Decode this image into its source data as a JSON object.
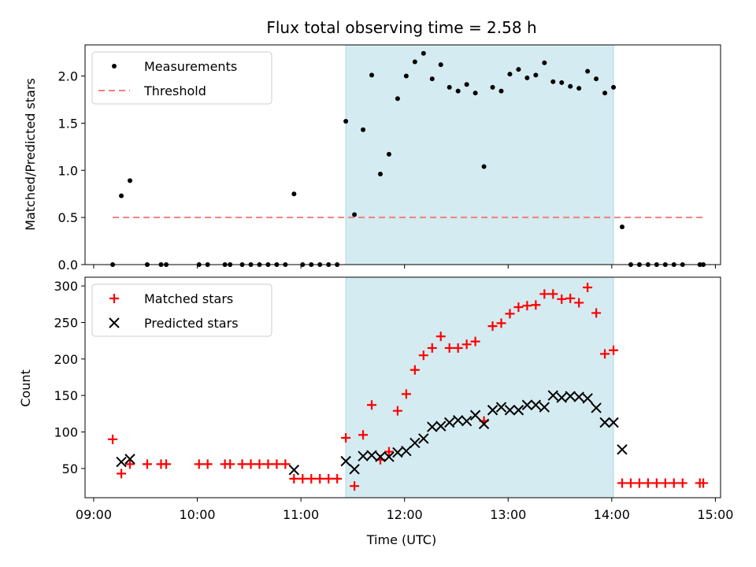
{
  "chart_data": [
    {
      "type": "scatter",
      "title": "Flux total observing time = 2.58 h",
      "xlabel": "",
      "ylabel": "Matched/Predicted stars",
      "ylim": [
        0,
        2.33
      ],
      "yticks": [
        0.0,
        0.5,
        1.0,
        1.5,
        2.0
      ],
      "ytick_labels": [
        "0.0",
        "0.5",
        "1.0",
        "1.5",
        "2.0"
      ],
      "legend_location": "upper-left",
      "highlight_span": {
        "start": "11:26",
        "end": "14:01",
        "color": "#d4ebf1"
      },
      "series": [
        {
          "name": "Measurements",
          "color": "#000000",
          "marker": "dot",
          "points": [
            [
              "09:11",
              0.0
            ],
            [
              "09:16",
              0.73
            ],
            [
              "09:21",
              0.89
            ],
            [
              "09:31",
              0.0
            ],
            [
              "09:39",
              0.0
            ],
            [
              "09:42",
              0.0
            ],
            [
              "10:01",
              0.0
            ],
            [
              "10:06",
              0.0
            ],
            [
              "10:16",
              0.0
            ],
            [
              "10:19",
              0.0
            ],
            [
              "10:26",
              0.0
            ],
            [
              "10:31",
              0.0
            ],
            [
              "10:36",
              0.0
            ],
            [
              "10:41",
              0.0
            ],
            [
              "10:46",
              0.0
            ],
            [
              "10:51",
              0.0
            ],
            [
              "10:56",
              0.75
            ],
            [
              "11:01",
              0.0
            ],
            [
              "11:06",
              0.0
            ],
            [
              "11:11",
              0.0
            ],
            [
              "11:16",
              0.0
            ],
            [
              "11:21",
              0.0
            ],
            [
              "11:26",
              1.52
            ],
            [
              "11:31",
              0.53
            ],
            [
              "11:36",
              1.43
            ],
            [
              "11:41",
              2.01
            ],
            [
              "11:46",
              0.96
            ],
            [
              "11:51",
              1.17
            ],
            [
              "11:56",
              1.76
            ],
            [
              "12:01",
              2.0
            ],
            [
              "12:06",
              2.15
            ],
            [
              "12:11",
              2.24
            ],
            [
              "12:16",
              1.97
            ],
            [
              "12:21",
              2.12
            ],
            [
              "12:26",
              1.88
            ],
            [
              "12:31",
              1.84
            ],
            [
              "12:36",
              1.91
            ],
            [
              "12:41",
              1.82
            ],
            [
              "12:46",
              1.04
            ],
            [
              "12:51",
              1.88
            ],
            [
              "12:56",
              1.84
            ],
            [
              "13:01",
              2.02
            ],
            [
              "13:06",
              2.07
            ],
            [
              "13:11",
              1.98
            ],
            [
              "13:16",
              2.01
            ],
            [
              "13:21",
              2.14
            ],
            [
              "13:26",
              1.94
            ],
            [
              "13:31",
              1.93
            ],
            [
              "13:36",
              1.89
            ],
            [
              "13:41",
              1.87
            ],
            [
              "13:46",
              2.05
            ],
            [
              "13:51",
              1.97
            ],
            [
              "13:56",
              1.82
            ],
            [
              "14:01",
              1.88
            ],
            [
              "14:06",
              0.4
            ],
            [
              "14:11",
              0.0
            ],
            [
              "14:16",
              0.0
            ],
            [
              "14:21",
              0.0
            ],
            [
              "14:26",
              0.0
            ],
            [
              "14:31",
              0.0
            ],
            [
              "14:36",
              0.0
            ],
            [
              "14:41",
              0.0
            ],
            [
              "14:51",
              0.0
            ],
            [
              "14:53",
              0.0
            ]
          ]
        },
        {
          "name": "Threshold",
          "color": "#f08080",
          "marker": "dashed-line",
          "points": [
            [
              "09:11",
              0.5
            ],
            [
              "14:53",
              0.5
            ]
          ]
        }
      ]
    },
    {
      "type": "scatter",
      "title": "",
      "xlabel": "Time (UTC)",
      "ylabel": "Count",
      "ylim": [
        10,
        312
      ],
      "yticks": [
        50,
        100,
        150,
        200,
        250,
        300
      ],
      "ytick_labels": [
        "50",
        "100",
        "150",
        "200",
        "250",
        "300"
      ],
      "xticks": [
        "09:00",
        "10:00",
        "11:00",
        "12:00",
        "13:00",
        "14:00",
        "15:00"
      ],
      "xlim": [
        "08:55",
        "15:03"
      ],
      "legend_location": "upper-left",
      "highlight_span": {
        "start": "11:26",
        "end": "14:01",
        "color": "#d4ebf1"
      },
      "series": [
        {
          "name": "Matched stars",
          "color": "#ff0000",
          "marker": "plus",
          "points": [
            [
              "09:11",
              90
            ],
            [
              "09:16",
              43
            ],
            [
              "09:21",
              56
            ],
            [
              "09:31",
              56
            ],
            [
              "09:39",
              56
            ],
            [
              "09:42",
              56
            ],
            [
              "10:01",
              56
            ],
            [
              "10:06",
              56
            ],
            [
              "10:16",
              56
            ],
            [
              "10:19",
              56
            ],
            [
              "10:26",
              56
            ],
            [
              "10:31",
              56
            ],
            [
              "10:36",
              56
            ],
            [
              "10:41",
              56
            ],
            [
              "10:46",
              56
            ],
            [
              "10:51",
              56
            ],
            [
              "10:56",
              36
            ],
            [
              "11:01",
              36
            ],
            [
              "11:06",
              36
            ],
            [
              "11:11",
              36
            ],
            [
              "11:16",
              36
            ],
            [
              "11:21",
              36
            ],
            [
              "11:26",
              92
            ],
            [
              "11:31",
              26
            ],
            [
              "11:36",
              96
            ],
            [
              "11:41",
              137
            ],
            [
              "11:46",
              62
            ],
            [
              "11:51",
              73
            ],
            [
              "11:56",
              129
            ],
            [
              "12:01",
              152
            ],
            [
              "12:06",
              185
            ],
            [
              "12:11",
              205
            ],
            [
              "12:16",
              215
            ],
            [
              "12:21",
              231
            ],
            [
              "12:26",
              215
            ],
            [
              "12:31",
              215
            ],
            [
              "12:36",
              220
            ],
            [
              "12:41",
              224
            ],
            [
              "12:46",
              115
            ],
            [
              "12:51",
              245
            ],
            [
              "12:56",
              249
            ],
            [
              "13:01",
              262
            ],
            [
              "13:06",
              271
            ],
            [
              "13:11",
              273
            ],
            [
              "13:16",
              274
            ],
            [
              "13:21",
              289
            ],
            [
              "13:26",
              289
            ],
            [
              "13:31",
              282
            ],
            [
              "13:36",
              283
            ],
            [
              "13:41",
              277
            ],
            [
              "13:46",
              298
            ],
            [
              "13:51",
              263
            ],
            [
              "13:56",
              207
            ],
            [
              "14:01",
              212
            ],
            [
              "14:06",
              30
            ],
            [
              "14:11",
              30
            ],
            [
              "14:16",
              30
            ],
            [
              "14:21",
              30
            ],
            [
              "14:26",
              30
            ],
            [
              "14:31",
              30
            ],
            [
              "14:36",
              30
            ],
            [
              "14:41",
              30
            ],
            [
              "14:51",
              30
            ],
            [
              "14:53",
              30
            ]
          ]
        },
        {
          "name": "Predicted stars",
          "color": "#000000",
          "marker": "x",
          "points": [
            [
              "09:16",
              59
            ],
            [
              "09:21",
              63
            ],
            [
              "10:56",
              48
            ],
            [
              "11:26",
              60
            ],
            [
              "11:31",
              49
            ],
            [
              "11:36",
              67
            ],
            [
              "11:41",
              68
            ],
            [
              "11:46",
              66
            ],
            [
              "11:51",
              66
            ],
            [
              "11:56",
              72
            ],
            [
              "12:01",
              74
            ],
            [
              "12:06",
              85
            ],
            [
              "12:11",
              91
            ],
            [
              "12:16",
              107
            ],
            [
              "12:21",
              108
            ],
            [
              "12:26",
              113
            ],
            [
              "12:31",
              116
            ],
            [
              "12:36",
              115
            ],
            [
              "12:41",
              123
            ],
            [
              "12:46",
              111
            ],
            [
              "12:51",
              130
            ],
            [
              "12:56",
              134
            ],
            [
              "13:01",
              130
            ],
            [
              "13:06",
              130
            ],
            [
              "13:11",
              137
            ],
            [
              "13:16",
              137
            ],
            [
              "13:21",
              134
            ],
            [
              "13:26",
              150
            ],
            [
              "13:31",
              147
            ],
            [
              "13:36",
              149
            ],
            [
              "13:41",
              148
            ],
            [
              "13:46",
              146
            ],
            [
              "13:51",
              133
            ],
            [
              "13:56",
              113
            ],
            [
              "14:01",
              113
            ],
            [
              "14:06",
              76
            ]
          ]
        }
      ]
    }
  ]
}
